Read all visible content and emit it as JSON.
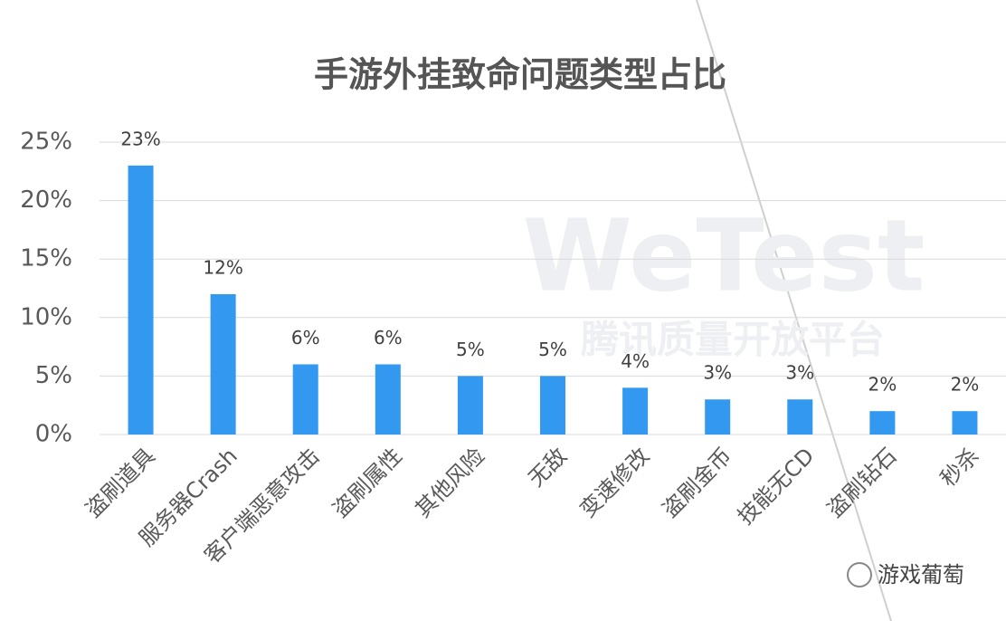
{
  "chart_data": {
    "type": "bar",
    "title": "手游外挂致命问题类型占比",
    "categories": [
      "盗刷道具",
      "服务器Crash",
      "客户端恶意攻击",
      "盗刷属性",
      "其他风险",
      "无敌",
      "变速修改",
      "盗刷金币",
      "技能无CD",
      "盗刷钻石",
      "秒杀"
    ],
    "values": [
      23,
      12,
      6,
      6,
      5,
      5,
      4,
      3,
      3,
      2,
      2
    ],
    "value_labels": [
      "23%",
      "12%",
      "6%",
      "6%",
      "5%",
      "5%",
      "4%",
      "3%",
      "3%",
      "2%",
      "2%"
    ],
    "color": "#3399f0",
    "ylim": [
      0,
      25
    ],
    "yticks": [
      {
        "value": 0,
        "label": "0%"
      },
      {
        "value": 5,
        "label": "5%"
      },
      {
        "value": 10,
        "label": "10%"
      },
      {
        "value": 15,
        "label": "15%"
      },
      {
        "value": 20,
        "label": "20%"
      },
      {
        "value": 25,
        "label": "25%"
      }
    ],
    "grid": true,
    "watermark": [
      "WeTest",
      "腾讯质量开放平台"
    ],
    "source": "游戏葡萄"
  }
}
